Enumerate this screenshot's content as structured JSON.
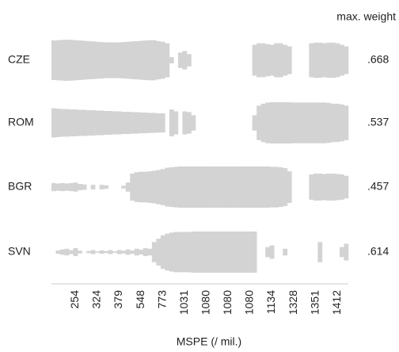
{
  "chart_data": {
    "type": "bar",
    "x_label": "MSPE (/ mil.)",
    "max_header": "max. weight",
    "color": "#d3d3d3",
    "categories": [
      null,
      null,
      null,
      null,
      null,
      "254",
      null,
      null,
      null,
      null,
      "324",
      null,
      null,
      null,
      null,
      "379",
      null,
      null,
      null,
      null,
      "548",
      null,
      null,
      null,
      null,
      "773",
      null,
      null,
      null,
      null,
      "1031",
      null,
      null,
      null,
      null,
      "1080",
      null,
      null,
      null,
      null,
      "1080",
      null,
      null,
      null,
      null,
      "1080",
      null,
      null,
      null,
      null,
      "1134",
      null,
      null,
      null,
      null,
      "1328",
      null,
      null,
      null,
      null,
      "1351",
      null,
      null,
      null,
      null,
      "1412",
      null,
      null
    ],
    "series": [
      {
        "name": "CZE",
        "max_weight": 0.668,
        "max_weight_label": ".668",
        "values": [
          0.64,
          0.65,
          0.66,
          0.668,
          0.66,
          0.65,
          0.64,
          0.63,
          0.62,
          0.61,
          0.6,
          0.59,
          0.58,
          0.58,
          0.58,
          0.58,
          0.59,
          0.6,
          0.61,
          0.62,
          0.63,
          0.64,
          0.65,
          0.65,
          0.62,
          0.6,
          0.55,
          0.1,
          0,
          0.25,
          0.3,
          0.2,
          0,
          0,
          0,
          0,
          0,
          0,
          0,
          0,
          0,
          0,
          0,
          0,
          0,
          0,
          0.5,
          0.55,
          0.55,
          0.52,
          0.5,
          0.55,
          0.55,
          0.5,
          0.45,
          0,
          0,
          0,
          0,
          0.55,
          0.57,
          0.57,
          0.55,
          0.57,
          0.57,
          0.55,
          0.5,
          0.45
        ]
      },
      {
        "name": "ROM",
        "max_weight": 0.537,
        "max_weight_label": ".537",
        "values": [
          0.38,
          0.37,
          0.36,
          0.36,
          0.35,
          0.35,
          0.34,
          0.34,
          0.33,
          0.33,
          0.32,
          0.32,
          0.31,
          0.31,
          0.3,
          0.3,
          0.29,
          0.29,
          0.28,
          0.28,
          0.27,
          0.27,
          0.26,
          0.26,
          0.25,
          0.25,
          0,
          0.35,
          0.3,
          0,
          0.3,
          0.28,
          0.2,
          0,
          0,
          0,
          0,
          0,
          0,
          0,
          0,
          0,
          0,
          0,
          0,
          0,
          0.2,
          0.45,
          0.5,
          0.53,
          0.537,
          0.537,
          0.537,
          0.537,
          0.537,
          0.53,
          0.53,
          0.53,
          0.53,
          0.53,
          0.53,
          0.53,
          0.53,
          0.52,
          0.5,
          0.5,
          0.48,
          0.45
        ]
      },
      {
        "name": "BGR",
        "max_weight": 0.457,
        "max_weight_label": ".457",
        "values": [
          0.09,
          0.08,
          0.09,
          0.08,
          0.09,
          0.1,
          0.07,
          0.06,
          0,
          0.05,
          0,
          0.05,
          0.04,
          0,
          0,
          0,
          0.03,
          0.1,
          0.3,
          0.33,
          0.34,
          0.34,
          0.35,
          0.36,
          0.38,
          0.4,
          0.43,
          0.44,
          0.45,
          0.457,
          0.457,
          0.457,
          0.457,
          0.457,
          0.457,
          0.457,
          0.457,
          0.457,
          0.457,
          0.457,
          0.457,
          0.457,
          0.457,
          0.457,
          0.457,
          0.457,
          0.457,
          0.457,
          0.457,
          0.457,
          0.45,
          0.45,
          0.44,
          0.42,
          0.35,
          0,
          0,
          0,
          0,
          0.28,
          0.3,
          0.3,
          0.29,
          0.3,
          0.3,
          0.29,
          0.28,
          0.25
        ]
      },
      {
        "name": "SVN",
        "max_weight": 0.614,
        "max_weight_label": ".614",
        "values": [
          0,
          0.05,
          0.08,
          0.1,
          0.06,
          0.12,
          0.04,
          0,
          0.03,
          0.06,
          0.02,
          0.05,
          0.03,
          0.06,
          0.02,
          0.06,
          0.04,
          0.08,
          0.05,
          0.1,
          0.07,
          0.12,
          0.1,
          0.3,
          0.4,
          0.5,
          0.55,
          0.58,
          0.6,
          0.6,
          0.6,
          0.6,
          0.614,
          0.614,
          0.614,
          0.614,
          0.614,
          0.614,
          0.614,
          0.614,
          0.614,
          0.614,
          0.614,
          0.614,
          0.614,
          0.614,
          0.614,
          0,
          0,
          0.15,
          0.2,
          0,
          0,
          0.1,
          0,
          0,
          0,
          0,
          0,
          0,
          0,
          0.3,
          0,
          0,
          0,
          0,
          0.15,
          0.25
        ]
      }
    ]
  }
}
